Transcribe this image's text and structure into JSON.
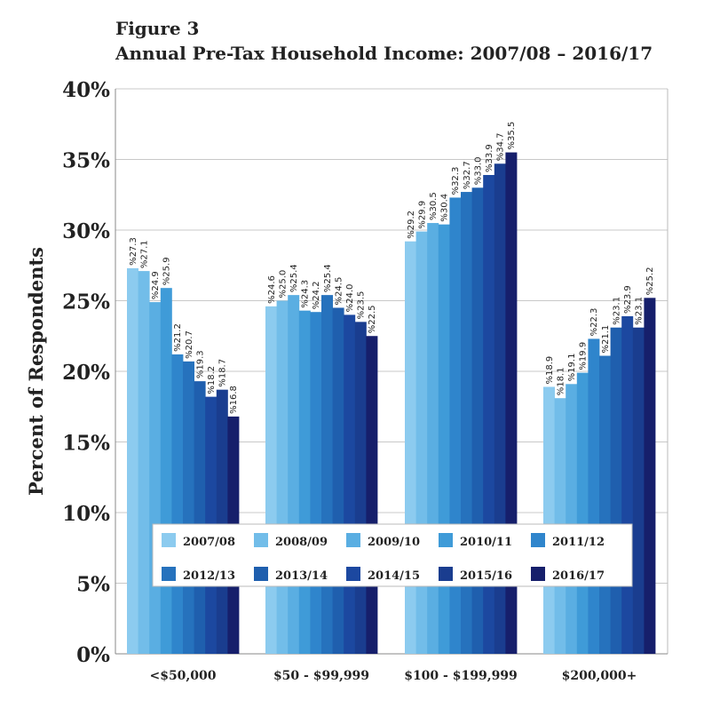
{
  "chart_data": {
    "type": "bar",
    "title": "Figure 3",
    "subtitle": "Annual Pre-Tax Household Income:  2007/08 – 2016/17",
    "xlabel": "",
    "ylabel": "Percent of Respondents",
    "ylim": [
      0,
      40
    ],
    "yticks": [
      "0%",
      "5%",
      "10%",
      "15%",
      "20%",
      "25%",
      "30%",
      "35%",
      "40%"
    ],
    "grid": true,
    "legend_placement": "bottom-center inside",
    "categories": [
      "<$50,000",
      "$50 - $99,999",
      "$100 - $199,999",
      "$200,000+"
    ],
    "series": [
      {
        "name": "2007/08",
        "color": "#8ccbef",
        "values": [
          27.3,
          24.6,
          29.2,
          18.9
        ],
        "labels": [
          "%27.3",
          "%24.6",
          "%29.2",
          "%18.9"
        ]
      },
      {
        "name": "2008/09",
        "color": "#72bde9",
        "values": [
          27.1,
          25.0,
          29.9,
          18.1
        ],
        "labels": [
          "%27.1",
          "%25.0",
          "%29.9",
          "%18.1"
        ]
      },
      {
        "name": "2009/10",
        "color": "#5aaee2",
        "values": [
          24.9,
          25.4,
          30.5,
          19.1
        ],
        "labels": [
          "%24.9",
          "%25.4",
          "%30.5",
          "%19.1"
        ]
      },
      {
        "name": "2010/11",
        "color": "#3f9bd8",
        "values": [
          25.9,
          24.3,
          30.4,
          19.9
        ],
        "labels": [
          "%25.9",
          "%24.3",
          "%30.4",
          "%19.9"
        ]
      },
      {
        "name": "2011/12",
        "color": "#2f85cc",
        "values": [
          21.2,
          24.2,
          32.3,
          22.3
        ],
        "labels": [
          "%21.2",
          "%24.2",
          "%32.3",
          "%22.3"
        ]
      },
      {
        "name": "2012/13",
        "color": "#2672bd",
        "values": [
          20.7,
          25.4,
          32.7,
          21.1
        ],
        "labels": [
          "%20.7",
          "%25.4",
          "%32.7",
          "%21.1"
        ]
      },
      {
        "name": "2013/14",
        "color": "#1f5fae",
        "values": [
          19.3,
          24.5,
          33.0,
          23.1
        ],
        "labels": [
          "%19.3",
          "%24.5",
          "%33.0",
          "%23.1"
        ]
      },
      {
        "name": "2014/15",
        "color": "#1c48a0",
        "values": [
          18.2,
          24.0,
          33.9,
          23.9
        ],
        "labels": [
          "%18.2",
          "%24.0",
          "%33.9",
          "%23.9"
        ]
      },
      {
        "name": "2015/16",
        "color": "#1a3d8f",
        "values": [
          18.7,
          23.5,
          34.7,
          23.1
        ],
        "labels": [
          "%18.7",
          "%23.5",
          "%34.7",
          "%23.1"
        ]
      },
      {
        "name": "2016/17",
        "color": "#161f6b",
        "values": [
          16.8,
          22.5,
          35.5,
          25.2
        ],
        "labels": [
          "%16.8",
          "%22.5",
          "%35.5",
          "%25.2"
        ]
      }
    ]
  }
}
